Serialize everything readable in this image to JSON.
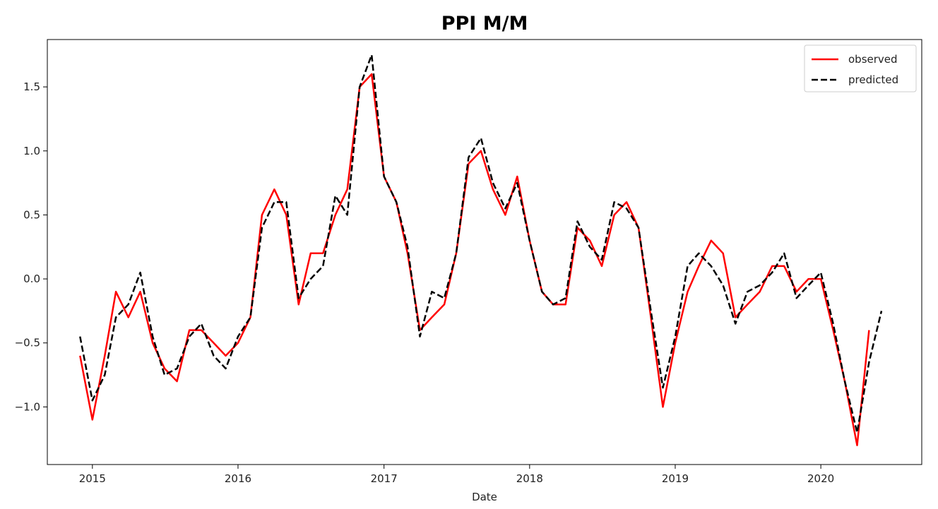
{
  "chart_data": {
    "type": "line",
    "title": "PPI M/M",
    "xlabel": "Date",
    "ylabel": "",
    "xlim": [
      "2014-09-10",
      "2020-09-10"
    ],
    "ylim": [
      -1.45,
      1.87
    ],
    "x_ticks": [
      "2015",
      "2016",
      "2017",
      "2018",
      "2019",
      "2020"
    ],
    "y_ticks": [
      -1.0,
      -0.5,
      0.0,
      0.5,
      1.0,
      1.5
    ],
    "y_tick_labels": [
      "−1.0",
      "−0.5",
      "0.0",
      "0.5",
      "1.0",
      "1.5"
    ],
    "grid": false,
    "legend": {
      "position": "top-right"
    },
    "series": [
      {
        "name": "observed",
        "color": "#ff0000",
        "style": "solid",
        "x": [
          "2014-12",
          "2015-01",
          "2015-02",
          "2015-03",
          "2015-04",
          "2015-05",
          "2015-06",
          "2015-07",
          "2015-08",
          "2015-09",
          "2015-10",
          "2015-11",
          "2015-12",
          "2016-01",
          "2016-02",
          "2016-03",
          "2016-04",
          "2016-05",
          "2016-06",
          "2016-07",
          "2016-08",
          "2016-09",
          "2016-10",
          "2016-11",
          "2016-12",
          "2017-01",
          "2017-02",
          "2017-03",
          "2017-04",
          "2017-05",
          "2017-06",
          "2017-07",
          "2017-08",
          "2017-09",
          "2017-10",
          "2017-11",
          "2017-12",
          "2018-01",
          "2018-02",
          "2018-03",
          "2018-04",
          "2018-05",
          "2018-06",
          "2018-07",
          "2018-08",
          "2018-09",
          "2018-10",
          "2018-11",
          "2018-12",
          "2019-01",
          "2019-02",
          "2019-03",
          "2019-04",
          "2019-05",
          "2019-06",
          "2019-07",
          "2019-08",
          "2019-09",
          "2019-10",
          "2019-11",
          "2019-12",
          "2020-01",
          "2020-02",
          "2020-03",
          "2020-04",
          "2020-05"
        ],
        "values": [
          -0.6,
          -1.1,
          -0.6,
          -0.1,
          -0.3,
          -0.1,
          -0.5,
          -0.7,
          -0.8,
          -0.4,
          -0.4,
          -0.5,
          -0.6,
          -0.5,
          -0.3,
          0.5,
          0.7,
          0.5,
          -0.2,
          0.2,
          0.2,
          0.5,
          0.7,
          1.5,
          1.6,
          0.8,
          0.6,
          0.2,
          -0.4,
          -0.3,
          -0.2,
          0.2,
          0.9,
          1.0,
          0.7,
          0.5,
          0.8,
          0.3,
          -0.1,
          -0.2,
          -0.2,
          0.4,
          0.3,
          0.1,
          0.5,
          0.6,
          0.4,
          -0.3,
          -1.0,
          -0.5,
          -0.1,
          0.1,
          0.3,
          0.2,
          -0.3,
          -0.2,
          -0.1,
          0.1,
          0.1,
          -0.1,
          0.0,
          0.0,
          -0.4,
          -0.8,
          -1.3,
          -0.4
        ]
      },
      {
        "name": "predicted",
        "color": "#000000",
        "style": "dashed",
        "x": [
          "2014-12",
          "2015-01",
          "2015-02",
          "2015-03",
          "2015-04",
          "2015-05",
          "2015-06",
          "2015-07",
          "2015-08",
          "2015-09",
          "2015-10",
          "2015-11",
          "2015-12",
          "2016-01",
          "2016-02",
          "2016-03",
          "2016-04",
          "2016-05",
          "2016-06",
          "2016-07",
          "2016-08",
          "2016-09",
          "2016-10",
          "2016-11",
          "2016-12",
          "2017-01",
          "2017-02",
          "2017-03",
          "2017-04",
          "2017-05",
          "2017-06",
          "2017-07",
          "2017-08",
          "2017-09",
          "2017-10",
          "2017-11",
          "2017-12",
          "2018-01",
          "2018-02",
          "2018-03",
          "2018-04",
          "2018-05",
          "2018-06",
          "2018-07",
          "2018-08",
          "2018-09",
          "2018-10",
          "2018-11",
          "2018-12",
          "2019-01",
          "2019-02",
          "2019-03",
          "2019-04",
          "2019-05",
          "2019-06",
          "2019-07",
          "2019-08",
          "2019-09",
          "2019-10",
          "2019-11",
          "2019-12",
          "2020-01",
          "2020-02",
          "2020-03",
          "2020-04",
          "2020-05",
          "2020-06"
        ],
        "values": [
          -0.45,
          -0.95,
          -0.75,
          -0.3,
          -0.2,
          0.05,
          -0.45,
          -0.75,
          -0.7,
          -0.45,
          -0.35,
          -0.6,
          -0.7,
          -0.45,
          -0.3,
          0.4,
          0.6,
          0.6,
          -0.15,
          0.0,
          0.1,
          0.65,
          0.5,
          1.5,
          1.75,
          0.8,
          0.6,
          0.25,
          -0.45,
          -0.1,
          -0.15,
          0.2,
          0.95,
          1.1,
          0.75,
          0.55,
          0.75,
          0.3,
          -0.1,
          -0.2,
          -0.15,
          0.45,
          0.25,
          0.15,
          0.6,
          0.55,
          0.4,
          -0.25,
          -0.85,
          -0.45,
          0.1,
          0.2,
          0.1,
          -0.05,
          -0.35,
          -0.1,
          -0.05,
          0.05,
          0.2,
          -0.15,
          -0.05,
          0.05,
          -0.35,
          -0.8,
          -1.2,
          -0.65,
          -0.25
        ]
      }
    ]
  }
}
